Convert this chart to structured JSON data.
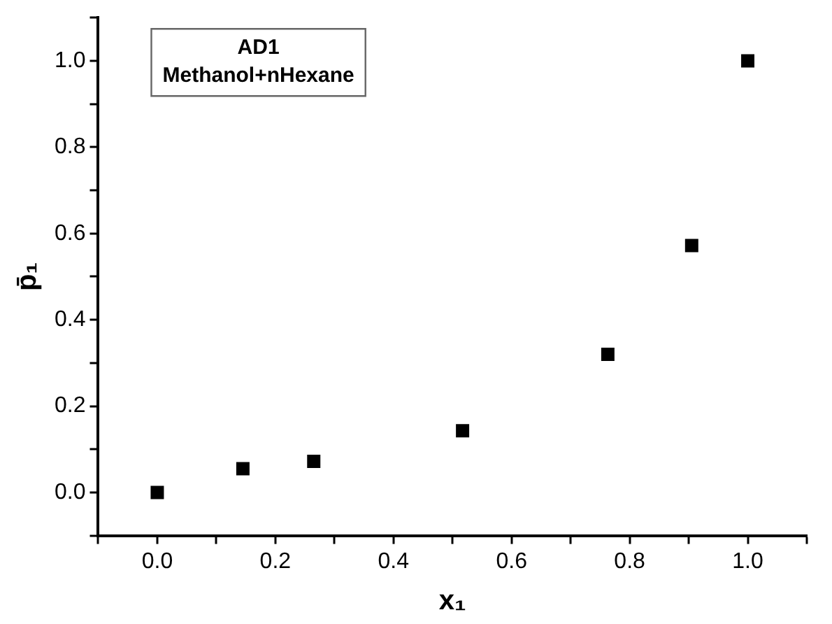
{
  "chart_data": {
    "type": "scatter",
    "xlabel": "x₁",
    "ylabel": "p̄₁",
    "annotations": [
      "AD1",
      "Methanol+nHexane"
    ],
    "x": [
      0,
      0.145,
      0.265,
      0.517,
      0.763,
      0.905,
      1.0
    ],
    "series": [
      {
        "color": "#000000",
        "values": [
          0,
          0.055,
          0.072,
          0.143,
          0.32,
          0.572,
          1.0
        ]
      }
    ],
    "xlim": [
      -0.1,
      1.1
    ],
    "ylim": [
      -0.1,
      1.1
    ],
    "xticks": [
      {
        "value": -0.1,
        "label": null
      },
      {
        "value": 0,
        "label": "0.0"
      },
      {
        "value": 0.1,
        "label": null
      },
      {
        "value": 0.2,
        "label": "0.2"
      },
      {
        "value": 0.3,
        "label": null
      },
      {
        "value": 0.4,
        "label": "0.4"
      },
      {
        "value": 0.5,
        "label": null
      },
      {
        "value": 0.6,
        "label": "0.6"
      },
      {
        "value": 0.7,
        "label": null
      },
      {
        "value": 0.8,
        "label": "0.8"
      },
      {
        "value": 0.9,
        "label": null
      },
      {
        "value": 1,
        "label": "1.0"
      },
      {
        "value": 1.1,
        "label": null
      }
    ],
    "yticks": [
      {
        "value": -0.1,
        "label": null
      },
      {
        "value": 0,
        "label": "0.0"
      },
      {
        "value": 0.1,
        "label": null
      },
      {
        "value": 0.2,
        "label": "0.2"
      },
      {
        "value": 0.3,
        "label": null
      },
      {
        "value": 0.4,
        "label": "0.4"
      },
      {
        "value": 0.5,
        "label": null
      },
      {
        "value": 0.6,
        "label": "0.6"
      },
      {
        "value": 0.7,
        "label": null
      },
      {
        "value": 0.8,
        "label": "0.8"
      },
      {
        "value": 0.9,
        "label": null
      },
      {
        "value": 1,
        "label": "1.0"
      },
      {
        "value": 1.1,
        "label": null
      }
    ],
    "grid": false,
    "legend": false,
    "marker": "square"
  }
}
